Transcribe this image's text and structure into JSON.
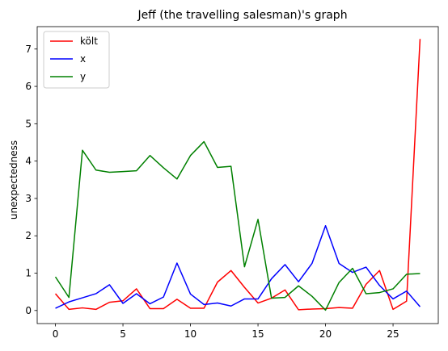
{
  "chart_data": {
    "type": "line",
    "title": "Jeff (the travelling salesman)'s graph",
    "xlabel": "",
    "ylabel": "unexpectedness",
    "xlim": [
      -1.35,
      28.35
    ],
    "ylim": [
      -0.35,
      7.6
    ],
    "xticks": [
      0,
      5,
      10,
      15,
      20,
      25
    ],
    "yticks": [
      0,
      1,
      2,
      3,
      4,
      5,
      6,
      7
    ],
    "grid": false,
    "legend_position": "upper-left",
    "x": [
      0,
      1,
      2,
      3,
      4,
      5,
      6,
      7,
      8,
      9,
      10,
      11,
      12,
      13,
      14,
      15,
      16,
      17,
      18,
      19,
      20,
      21,
      22,
      23,
      24,
      25,
      26,
      27
    ],
    "series": [
      {
        "name": "költ",
        "color": "#ff0000",
        "values": [
          0.45,
          0.03,
          0.07,
          0.03,
          0.22,
          0.26,
          0.58,
          0.05,
          0.05,
          0.3,
          0.06,
          0.06,
          0.76,
          1.07,
          0.62,
          0.2,
          0.33,
          0.55,
          0.02,
          0.04,
          0.05,
          0.08,
          0.06,
          0.7,
          1.07,
          0.03,
          0.25,
          7.27
        ]
      },
      {
        "name": "x",
        "color": "#0000ff",
        "values": [
          0.06,
          0.23,
          0.34,
          0.45,
          0.69,
          0.19,
          0.45,
          0.18,
          0.36,
          1.27,
          0.44,
          0.16,
          0.2,
          0.12,
          0.31,
          0.31,
          0.85,
          1.23,
          0.77,
          1.26,
          2.27,
          1.26,
          1.02,
          1.16,
          0.67,
          0.31,
          0.52,
          0.1
        ]
      },
      {
        "name": "y",
        "color": "#008000",
        "values": [
          0.9,
          0.35,
          4.29,
          3.76,
          3.7,
          3.72,
          3.74,
          4.15,
          3.82,
          3.52,
          4.15,
          4.52,
          3.83,
          3.86,
          1.17,
          2.44,
          0.33,
          0.35,
          0.66,
          0.38,
          0.01,
          0.75,
          1.13,
          0.45,
          0.48,
          0.58,
          0.97,
          0.99
        ]
      }
    ]
  }
}
